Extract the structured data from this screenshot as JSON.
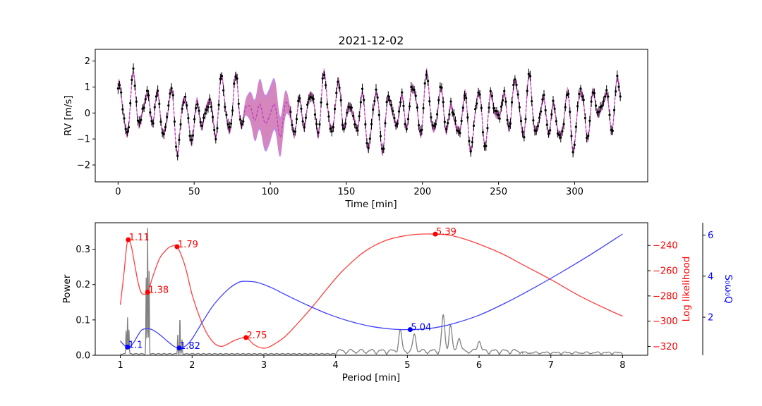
{
  "chart_data": [
    {
      "type": "line",
      "title": "2021-12-02",
      "xlabel": "Time [min]",
      "ylabel": "RV [m/s]",
      "xlim": [
        -15,
        348
      ],
      "ylim": [
        -2.65,
        2.45
      ],
      "xticks": [
        0,
        50,
        100,
        150,
        200,
        250,
        300
      ],
      "yticks": [
        -2,
        -1,
        0,
        1,
        2
      ],
      "grid": false,
      "series": [
        {
          "role": "data-points",
          "color": "#000000",
          "x_range": [
            0,
            330
          ],
          "n_points": 330,
          "error_bar": 0.18
        },
        {
          "role": "model-1-band",
          "color": "#f08080"
        },
        {
          "role": "model-2-band",
          "color": "#8a2be2"
        },
        {
          "role": "model-mean",
          "color": "#c040c0",
          "linestyle": "dashed"
        }
      ],
      "gap": {
        "x_range": [
          82,
          114
        ],
        "note": "no data, widened uncertainty band"
      }
    },
    {
      "type": "line",
      "xlabel": "Period [min]",
      "ylabel": "Power",
      "ylabel_right": "Log likelihood",
      "ylabel_right2": "S₀ω₀Q",
      "xlim": [
        0.65,
        8.35
      ],
      "ylim": [
        0,
        0.375
      ],
      "ylim_right": [
        -327,
        -222
      ],
      "ylim_right2": [
        0.15,
        6.6
      ],
      "xticks": [
        1,
        2,
        3,
        4,
        5,
        6,
        7,
        8
      ],
      "yticks": [
        0.0,
        0.1,
        0.2,
        0.3
      ],
      "yticks_right": [
        -320,
        -300,
        -280,
        -260,
        -240
      ],
      "yticks_right2": [
        2,
        4,
        6
      ],
      "right_color": "#ff0000",
      "right2_color": "#0000ff",
      "series": [
        {
          "name": "",
          "role": "periodogram",
          "color": "#808080",
          "axis": "left",
          "peaks": [
            {
              "x": 1.08,
              "y": 0.065
            },
            {
              "x": 1.1,
              "y": 0.105
            },
            {
              "x": 1.12,
              "y": 0.068
            },
            {
              "x": 1.36,
              "y": 0.215
            },
            {
              "x": 1.38,
              "y": 0.355
            },
            {
              "x": 1.4,
              "y": 0.235
            },
            {
              "x": 1.8,
              "y": 0.055
            },
            {
              "x": 1.83,
              "y": 0.105
            },
            {
              "x": 1.86,
              "y": 0.04
            },
            {
              "x": 4.9,
              "y": 0.058
            },
            {
              "x": 5.1,
              "y": 0.048
            },
            {
              "x": 5.5,
              "y": 0.1
            },
            {
              "x": 5.6,
              "y": 0.073
            },
            {
              "x": 5.72,
              "y": 0.042
            },
            {
              "x": 6.0,
              "y": 0.033
            }
          ]
        },
        {
          "role": "log-likelihood",
          "color": "#ff4040",
          "axis": "right",
          "x": [
            1.0,
            1.05,
            1.1,
            1.15,
            1.2,
            1.25,
            1.3,
            1.38,
            1.45,
            1.55,
            1.65,
            1.7,
            1.79,
            1.9,
            2.0,
            2.1,
            2.2,
            2.3,
            2.4,
            2.5,
            2.6,
            2.75,
            2.85,
            2.95,
            3.05,
            3.15,
            3.3,
            3.5,
            3.7,
            3.9,
            4.1,
            4.4,
            4.7,
            5.0,
            5.2,
            5.39,
            5.6,
            5.8,
            6.0,
            6.3,
            6.6,
            7.0,
            7.4,
            7.8,
            8.0
          ],
          "y": [
            -287,
            -262,
            -236,
            -240,
            -255,
            -270,
            -278,
            -277,
            -265,
            -250,
            -243,
            -241,
            -241,
            -256,
            -279,
            -296,
            -309,
            -317,
            -320,
            -318,
            -315,
            -313,
            -318,
            -321,
            -321,
            -318,
            -312,
            -300,
            -287,
            -273,
            -260,
            -245,
            -236,
            -232,
            -231,
            -231,
            -232,
            -235,
            -239,
            -246,
            -255,
            -267,
            -280,
            -291,
            -296
          ]
        },
        {
          "role": "s0w0q",
          "color": "#4040ff",
          "axis": "right2",
          "x": [
            1.0,
            1.05,
            1.1,
            1.15,
            1.2,
            1.25,
            1.3,
            1.38,
            1.45,
            1.55,
            1.65,
            1.75,
            1.82,
            1.9,
            2.0,
            2.15,
            2.3,
            2.5,
            2.65,
            2.75,
            2.9,
            3.1,
            3.3,
            3.6,
            3.9,
            4.2,
            4.5,
            4.8,
            5.04,
            5.3,
            5.6,
            6.0,
            6.4,
            6.8,
            7.2,
            7.6,
            8.0
          ],
          "y": [
            0.85,
            0.65,
            0.55,
            0.62,
            0.85,
            1.15,
            1.38,
            1.45,
            1.38,
            1.15,
            0.85,
            0.58,
            0.5,
            0.58,
            0.95,
            1.8,
            2.6,
            3.35,
            3.7,
            3.75,
            3.7,
            3.45,
            3.1,
            2.6,
            2.15,
            1.8,
            1.55,
            1.42,
            1.4,
            1.45,
            1.65,
            2.1,
            2.75,
            3.5,
            4.3,
            5.15,
            6.05
          ]
        }
      ],
      "annotations": [
        {
          "label": "1.11",
          "x": 1.11,
          "y": -235.5,
          "axis": "right",
          "color": "#ff0000"
        },
        {
          "label": "1.38",
          "x": 1.38,
          "y": -277,
          "axis": "right",
          "color": "#ff0000"
        },
        {
          "label": "1.79",
          "x": 1.79,
          "y": -241,
          "axis": "right",
          "color": "#ff0000"
        },
        {
          "label": "2.75",
          "x": 2.75,
          "y": -313,
          "axis": "right",
          "color": "#ff0000"
        },
        {
          "label": "5.39",
          "x": 5.39,
          "y": -231,
          "axis": "right",
          "color": "#ff0000"
        },
        {
          "label": "1.1",
          "x": 1.1,
          "y": 0.55,
          "axis": "right2",
          "color": "#0000ff"
        },
        {
          "label": "1.82",
          "x": 1.82,
          "y": 0.5,
          "axis": "right2",
          "color": "#0000ff"
        },
        {
          "label": "5.04",
          "x": 5.04,
          "y": 1.4,
          "axis": "right2",
          "color": "#0000ff"
        }
      ]
    }
  ]
}
